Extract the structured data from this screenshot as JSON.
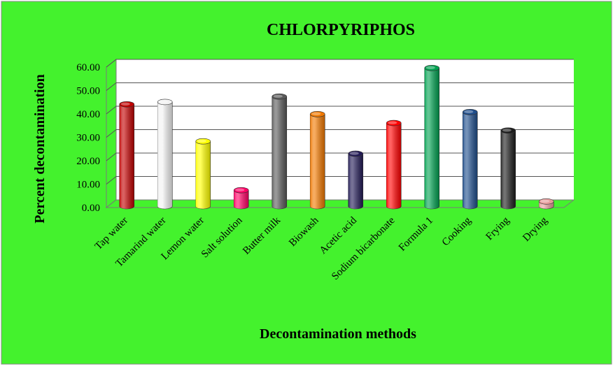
{
  "chart_data": {
    "type": "bar",
    "title": "CHLORPYRIPHOS",
    "xlabel": "Decontamination methods",
    "ylabel": "Percent decontamination",
    "ylim": [
      0,
      60
    ],
    "yticks": [
      "0.00",
      "10.00",
      "20.00",
      "30.00",
      "40.00",
      "50.00",
      "60.00"
    ],
    "grid": true,
    "background": "#44f22d",
    "plot_background": "#ffffff",
    "categories": [
      "Tap water",
      "Tamarind water",
      "Lemon water",
      "Salt solution",
      "Butter milk",
      "Biowash",
      "Acetic acid",
      "Sodium bicarbonate",
      "Formula 1",
      "Cooking",
      "Frying",
      "Drying"
    ],
    "values": [
      43.5,
      44.5,
      27.7,
      6.8,
      46.8,
      39.3,
      22.4,
      35.5,
      59.0,
      40.2,
      32.3,
      2.0
    ],
    "colors": [
      "#c00000",
      "#f2f2f2",
      "#ffff00",
      "#ff0066",
      "#595959",
      "#f07800",
      "#221a55",
      "#ff0000",
      "#00a050",
      "#1f4e8c",
      "#1c1c1c",
      "#e69a9a"
    ]
  }
}
